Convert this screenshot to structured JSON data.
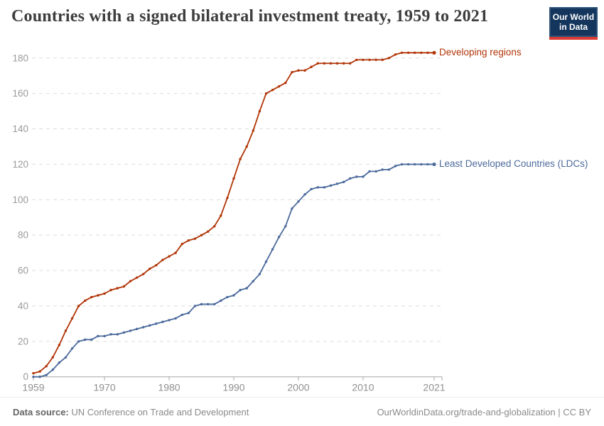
{
  "header": {
    "title": "Countries with a signed bilateral investment treaty, 1959 to 2021",
    "logo": {
      "line1": "Our World",
      "line2": "in Data",
      "bg": "#14355c",
      "accent": "#dc3a32"
    }
  },
  "chart_data": {
    "type": "line",
    "title": "Countries with a signed bilateral investment treaty, 1959 to 2021",
    "xlabel": "",
    "ylabel": "",
    "ylim": [
      0,
      180
    ],
    "yticks": [
      0,
      20,
      40,
      60,
      80,
      100,
      120,
      140,
      160,
      180
    ],
    "xticks": [
      1959,
      1970,
      1980,
      1990,
      2000,
      2010,
      2021
    ],
    "grid": true,
    "grid_style": "dashed",
    "legend_position": "end-of-line",
    "x": [
      1959,
      1960,
      1961,
      1962,
      1963,
      1964,
      1965,
      1966,
      1967,
      1968,
      1969,
      1970,
      1971,
      1972,
      1973,
      1974,
      1975,
      1976,
      1977,
      1978,
      1979,
      1980,
      1981,
      1982,
      1983,
      1984,
      1985,
      1986,
      1987,
      1988,
      1989,
      1990,
      1991,
      1992,
      1993,
      1994,
      1995,
      1996,
      1997,
      1998,
      1999,
      2000,
      2001,
      2002,
      2003,
      2004,
      2005,
      2006,
      2007,
      2008,
      2009,
      2010,
      2011,
      2012,
      2013,
      2014,
      2015,
      2016,
      2017,
      2018,
      2019,
      2020,
      2021
    ],
    "series": [
      {
        "name": "Developing regions",
        "color": "#b13507",
        "values": [
          2,
          3,
          6,
          11,
          18,
          26,
          33,
          40,
          43,
          45,
          46,
          47,
          49,
          50,
          51,
          54,
          56,
          58,
          61,
          63,
          66,
          68,
          70,
          75,
          77,
          78,
          80,
          82,
          85,
          91,
          101,
          112,
          123,
          130,
          139,
          150,
          160,
          162,
          164,
          166,
          172,
          173,
          173,
          175,
          177,
          177,
          177,
          177,
          177,
          177,
          179,
          179,
          179,
          179,
          179,
          180,
          182,
          183,
          183,
          183,
          183,
          183,
          183
        ]
      },
      {
        "name": "Least Developed Countries (LDCs)",
        "color": "#4c6a9c",
        "values": [
          0,
          0,
          1,
          4,
          8,
          11,
          16,
          20,
          21,
          21,
          23,
          23,
          24,
          24,
          25,
          26,
          27,
          28,
          29,
          30,
          31,
          32,
          33,
          35,
          36,
          40,
          41,
          41,
          41,
          43,
          45,
          46,
          49,
          50,
          54,
          58,
          65,
          72,
          79,
          85,
          95,
          99,
          103,
          106,
          107,
          107,
          108,
          109,
          110,
          112,
          113,
          113,
          116,
          116,
          117,
          117,
          119,
          120,
          120,
          120,
          120,
          120,
          120
        ]
      }
    ],
    "axis_color": "#a5a5a5",
    "gridline_color": "#dddddd",
    "tick_label_color": "#8f8f8f"
  },
  "footer": {
    "source_label": "Data source:",
    "source_value": " UN Conference on Trade and Development",
    "credit": "OurWorldinData.org/trade-and-globalization | CC BY"
  }
}
